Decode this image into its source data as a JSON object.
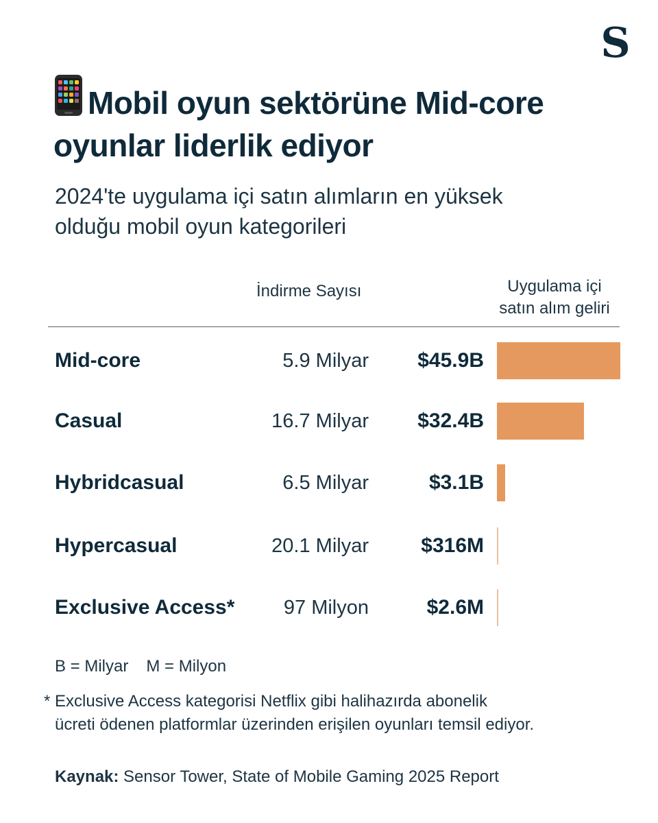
{
  "logo": "S",
  "title_line1": "Mobil oyun sektörüne Mid-core",
  "title_line2": "oyunlar liderlik ediyor",
  "icon": "mobile-phone-icon",
  "subtitle_line1": "2024'te uygulama içi satın alımların en yüksek",
  "subtitle_line2": "olduğu mobil oyun kategorileri",
  "header": {
    "downloads": "İndirme Sayısı",
    "revenue_line1": "Uygulama içi",
    "revenue_line2": "satın alım geliri"
  },
  "chart_data": {
    "type": "bar",
    "orientation": "horizontal",
    "categories": [
      "Mid-core",
      "Casual",
      "Hybridcasual",
      "Hypercasual",
      "Exclusive Access*"
    ],
    "downloads": [
      "5.9 Milyar",
      "16.7 Milyar",
      "6.5 Milyar",
      "20.1 Milyar",
      "97 Milyon"
    ],
    "revenue_labels": [
      "$45.9B",
      "$32.4B",
      "$3.1B",
      "$316M",
      "$2.6M"
    ],
    "values": [
      45.9,
      32.4,
      3.1,
      0.316,
      0.0026
    ],
    "colors": {
      "bar": "#e6995e",
      "text": "#0f2a3a"
    }
  },
  "legend": {
    "billion": "B = Milyar",
    "million": "M = Milyon"
  },
  "footnote": {
    "star": "*",
    "line1": "Exclusive Access kategorisi Netflix gibi halihazırda abonelik",
    "line2": "ücreti ödenen platformlar üzerinden erişilen oyunları temsil ediyor."
  },
  "source": {
    "label": "Kaynak:",
    "text": " Sensor Tower, State of Mobile Gaming 2025 Report"
  }
}
